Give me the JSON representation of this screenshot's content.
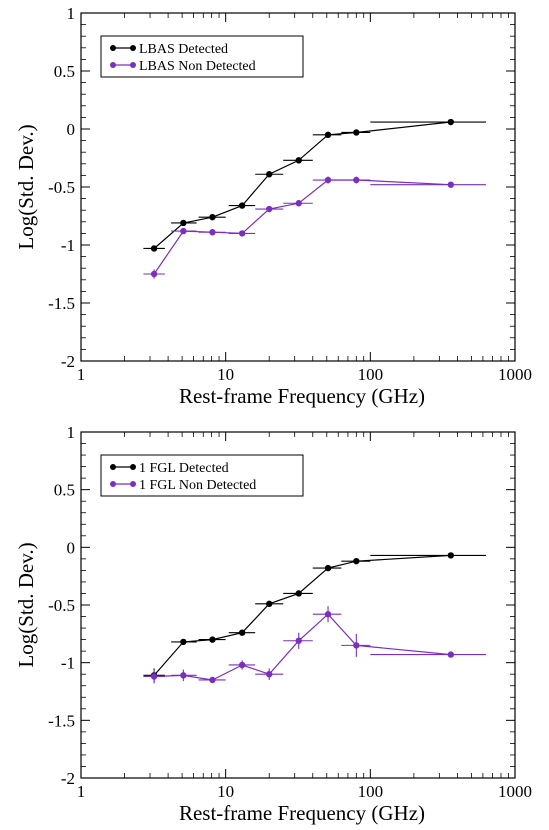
{
  "chart_data": [
    {
      "type": "line",
      "title": "",
      "xlabel": "Rest-frame Frequency (GHz)",
      "ylabel": "Log(Std. Dev.)",
      "xscale": "log",
      "xlim": [
        1,
        1000
      ],
      "ylim": [
        -2,
        1
      ],
      "xticks": [
        {
          "v": 1,
          "label": "1"
        },
        {
          "v": 10,
          "label": "10"
        },
        {
          "v": 100,
          "label": "100"
        },
        {
          "v": 1000,
          "label": "1000"
        }
      ],
      "yticks": [
        {
          "v": 1,
          "label": "1"
        },
        {
          "v": 0.5,
          "label": "0.5"
        },
        {
          "v": 0,
          "label": "0"
        },
        {
          "v": -0.5,
          "label": "-0.5"
        },
        {
          "v": -1,
          "label": "-1"
        },
        {
          "v": -1.5,
          "label": "-1.5"
        },
        {
          "v": -2,
          "label": "-2"
        }
      ],
      "grid": false,
      "legend_position": "top-left",
      "series": [
        {
          "name": "LBAS Detected",
          "color": "#000000",
          "points": [
            {
              "x": 3.2,
              "y": -1.03,
              "xlo": 2.7,
              "xhi": 3.8,
              "yerr": 0.01
            },
            {
              "x": 5.1,
              "y": -0.81,
              "xlo": 4.2,
              "xhi": 6.3,
              "yerr": 0.01
            },
            {
              "x": 8.1,
              "y": -0.76,
              "xlo": 6.5,
              "xhi": 10,
              "yerr": 0.01
            },
            {
              "x": 13,
              "y": -0.66,
              "xlo": 10.5,
              "xhi": 16,
              "yerr": 0.01
            },
            {
              "x": 20,
              "y": -0.39,
              "xlo": 16,
              "xhi": 25,
              "yerr": 0.01
            },
            {
              "x": 32,
              "y": -0.27,
              "xlo": 25,
              "xhi": 40,
              "yerr": 0.01
            },
            {
              "x": 51,
              "y": -0.05,
              "xlo": 40,
              "xhi": 63,
              "yerr": 0.01
            },
            {
              "x": 80,
              "y": -0.03,
              "xlo": 63,
              "xhi": 100,
              "yerr": 0.01
            },
            {
              "x": 360,
              "y": 0.06,
              "xlo": 100,
              "xhi": 630,
              "yerr": 0.01
            }
          ]
        },
        {
          "name": "LBAS Non Detected",
          "color": "#7b2fbe",
          "points": [
            {
              "x": 3.2,
              "y": -1.25,
              "xlo": 2.7,
              "xhi": 3.8,
              "yerr": 0.04
            },
            {
              "x": 5.1,
              "y": -0.88,
              "xlo": 4.2,
              "xhi": 6.3,
              "yerr": 0.02
            },
            {
              "x": 8.1,
              "y": -0.89,
              "xlo": 6.5,
              "xhi": 10,
              "yerr": 0.02
            },
            {
              "x": 13,
              "y": -0.9,
              "xlo": 10.5,
              "xhi": 16,
              "yerr": 0.02
            },
            {
              "x": 20,
              "y": -0.69,
              "xlo": 16,
              "xhi": 25,
              "yerr": 0.02
            },
            {
              "x": 32,
              "y": -0.64,
              "xlo": 25,
              "xhi": 40,
              "yerr": 0.02
            },
            {
              "x": 51,
              "y": -0.44,
              "xlo": 40,
              "xhi": 63,
              "yerr": 0.03
            },
            {
              "x": 80,
              "y": -0.44,
              "xlo": 63,
              "xhi": 100,
              "yerr": 0.03
            },
            {
              "x": 360,
              "y": -0.48,
              "xlo": 100,
              "xhi": 630,
              "yerr": 0.02
            }
          ]
        }
      ]
    },
    {
      "type": "line",
      "title": "",
      "xlabel": "Rest-frame Frequency (GHz)",
      "ylabel": "Log(Std. Dev.)",
      "xscale": "log",
      "xlim": [
        1,
        1000
      ],
      "ylim": [
        -2,
        1
      ],
      "xticks": [
        {
          "v": 1,
          "label": "1"
        },
        {
          "v": 10,
          "label": "10"
        },
        {
          "v": 100,
          "label": "100"
        },
        {
          "v": 1000,
          "label": "1000"
        }
      ],
      "yticks": [
        {
          "v": 1,
          "label": "1"
        },
        {
          "v": 0.5,
          "label": "0.5"
        },
        {
          "v": 0,
          "label": "0"
        },
        {
          "v": -0.5,
          "label": "-0.5"
        },
        {
          "v": -1,
          "label": "-1"
        },
        {
          "v": -1.5,
          "label": "-1.5"
        },
        {
          "v": -2,
          "label": "-2"
        }
      ],
      "grid": false,
      "legend_position": "top-left",
      "series": [
        {
          "name": "1 FGL Detected",
          "color": "#000000",
          "points": [
            {
              "x": 3.2,
              "y": -1.11,
              "xlo": 2.7,
              "xhi": 3.8,
              "yerr": 0.06
            },
            {
              "x": 5.1,
              "y": -0.82,
              "xlo": 4.2,
              "xhi": 6.3,
              "yerr": 0.01
            },
            {
              "x": 8.1,
              "y": -0.8,
              "xlo": 6.5,
              "xhi": 10,
              "yerr": 0.01
            },
            {
              "x": 13,
              "y": -0.74,
              "xlo": 10.5,
              "xhi": 16,
              "yerr": 0.01
            },
            {
              "x": 20,
              "y": -0.49,
              "xlo": 16,
              "xhi": 25,
              "yerr": 0.01
            },
            {
              "x": 32,
              "y": -0.4,
              "xlo": 25,
              "xhi": 40,
              "yerr": 0.01
            },
            {
              "x": 51,
              "y": -0.18,
              "xlo": 40,
              "xhi": 63,
              "yerr": 0.01
            },
            {
              "x": 80,
              "y": -0.12,
              "xlo": 63,
              "xhi": 100,
              "yerr": 0.01
            },
            {
              "x": 360,
              "y": -0.07,
              "xlo": 100,
              "xhi": 630,
              "yerr": 0.01
            }
          ]
        },
        {
          "name": "1 FGL Non Detected",
          "color": "#7b2fbe",
          "points": [
            {
              "x": 3.2,
              "y": -1.12,
              "xlo": 2.7,
              "xhi": 3.8,
              "yerr": 0.06
            },
            {
              "x": 5.1,
              "y": -1.11,
              "xlo": 4.2,
              "xhi": 6.3,
              "yerr": 0.05
            },
            {
              "x": 8.1,
              "y": -1.15,
              "xlo": 6.5,
              "xhi": 10,
              "yerr": 0.02
            },
            {
              "x": 13,
              "y": -1.02,
              "xlo": 10.5,
              "xhi": 16,
              "yerr": 0.04
            },
            {
              "x": 20,
              "y": -1.1,
              "xlo": 16,
              "xhi": 25,
              "yerr": 0.05
            },
            {
              "x": 32,
              "y": -0.81,
              "xlo": 25,
              "xhi": 40,
              "yerr": 0.07
            },
            {
              "x": 51,
              "y": -0.58,
              "xlo": 40,
              "xhi": 63,
              "yerr": 0.07
            },
            {
              "x": 80,
              "y": -0.85,
              "xlo": 63,
              "xhi": 100,
              "yerr": 0.1
            },
            {
              "x": 360,
              "y": -0.93,
              "xlo": 100,
              "xhi": 630,
              "yerr": 0.02
            }
          ]
        }
      ]
    }
  ]
}
